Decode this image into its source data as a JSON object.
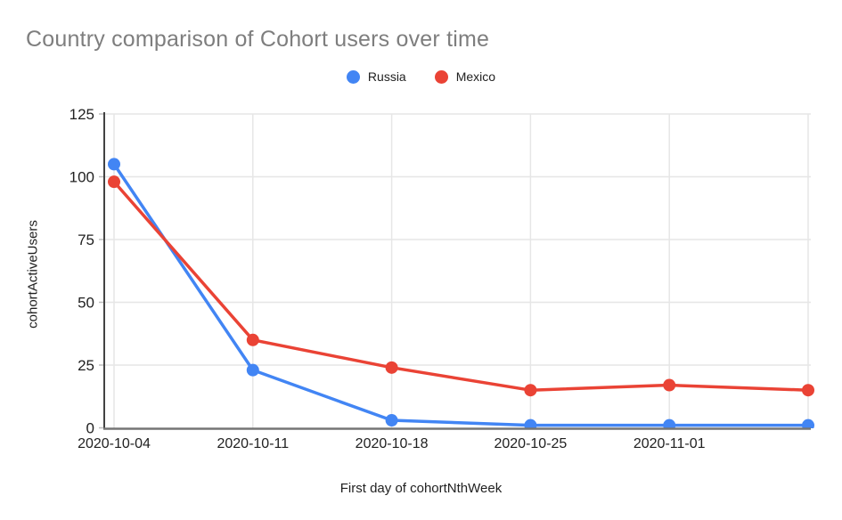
{
  "chart_data": {
    "type": "line",
    "title": "Country comparison of Cohort users over time",
    "xlabel": "First day of cohortNthWeek",
    "ylabel": "cohortActiveUsers",
    "categories": [
      "2020-10-04",
      "2020-10-11",
      "2020-10-18",
      "2020-10-25",
      "2020-11-01",
      ""
    ],
    "series": [
      {
        "name": "Russia",
        "color": "#4285F4",
        "values": [
          105,
          23,
          3,
          1,
          1,
          1
        ]
      },
      {
        "name": "Mexico",
        "color": "#EA4335",
        "values": [
          98,
          35,
          24,
          15,
          17,
          15
        ]
      }
    ],
    "ylim": [
      0,
      125
    ],
    "yticks": [
      0,
      25,
      50,
      75,
      100,
      125
    ],
    "grid": true,
    "legend_position": "top",
    "marker": "circle"
  },
  "colors": {
    "title_text": "#7e7e7e",
    "tick_text": "#212121",
    "russia_blue": "#4285F4",
    "mexico_red": "#EA4335"
  }
}
